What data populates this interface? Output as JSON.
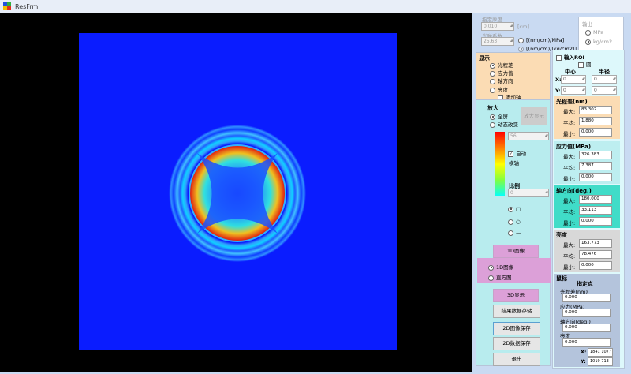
{
  "window": {
    "title": "ResFrm"
  },
  "params": {
    "thickness_label": "指定厚度",
    "thickness_value": "0.010",
    "thickness_unit": "[cm]",
    "coef_label": "光弹系数",
    "coef_value": "25.63",
    "unit_opt1": "[(nm/cm)/MPa]",
    "unit_opt2": "[(nm/cm)/(kg/cm2)]"
  },
  "output": {
    "title": "输出",
    "opt1": "MPa",
    "opt2": "kg/cm2"
  },
  "display": {
    "title": "显示",
    "options": [
      "光程差",
      "应力值",
      "轴方向",
      "亮度"
    ],
    "add_axis": "添加轴"
  },
  "roi": {
    "input_label": "输入ROI",
    "circle_label": "圆",
    "center_label": "中心",
    "radius_label": "半径",
    "x_label": "X:",
    "y_label": "Y:",
    "cx": "0",
    "cy": "0",
    "rx": "0",
    "ry": "0"
  },
  "zoom": {
    "title": "放大",
    "fullscreen": "全屏",
    "dynamic": "动态改变",
    "zoom_button": "放大显示",
    "colorbar_value": "56",
    "auto_label": "自动",
    "axis_label": "横轴",
    "scale_label": "比例",
    "scale_value": "0"
  },
  "shape": {
    "options": [
      "□",
      "○",
      "—"
    ]
  },
  "buttons": {
    "image_1d": "1D图像",
    "radio_1d": "1D图像",
    "radio_hist": "直方图",
    "show_3d": "3D显示",
    "save_results": "结果数据存储",
    "save_2d_image": "2D图像保存",
    "save_2d_data": "2D数据保存",
    "exit": "退出"
  },
  "stats": {
    "retard": {
      "title": "光程差(nm)",
      "max": "83.302",
      "avg": "1.880",
      "min": "0.000"
    },
    "stress": {
      "title": "应力值(MPa)",
      "max": "326.383",
      "avg": "7.387",
      "min": "0.000"
    },
    "axis": {
      "title": "轴方向(deg.)",
      "max": "180.000",
      "avg": "33.113",
      "min": "0.000"
    },
    "bright": {
      "title": "亮度",
      "max": "163.773",
      "avg": "78.476",
      "min": "0.000"
    },
    "labels": {
      "max": "最大:",
      "avg": "平均:",
      "min": "最小:"
    }
  },
  "cursor": {
    "title": "鼠标",
    "subtitle": "指定点",
    "retard_label": "光程差(nm)",
    "retard": "0.000",
    "stress_label": "应力(MPa)",
    "stress": "0.000",
    "axis_label": "轴方向(deg.)",
    "axis": "0.000",
    "bright_label": "亮度",
    "bright": "0.000",
    "x_label": "X:",
    "x_val": "1841   1077",
    "y_label": "Y:",
    "y_val": "1019   713"
  },
  "colors": {
    "accent_pink": "#dca0d8",
    "panel_peach": "#fbdcb4",
    "panel_cyan": "#bdeef0",
    "panel_teal": "#40dcc8",
    "panel_gray": "#d8d8d8",
    "panel_blue": "#b4c4dc"
  }
}
